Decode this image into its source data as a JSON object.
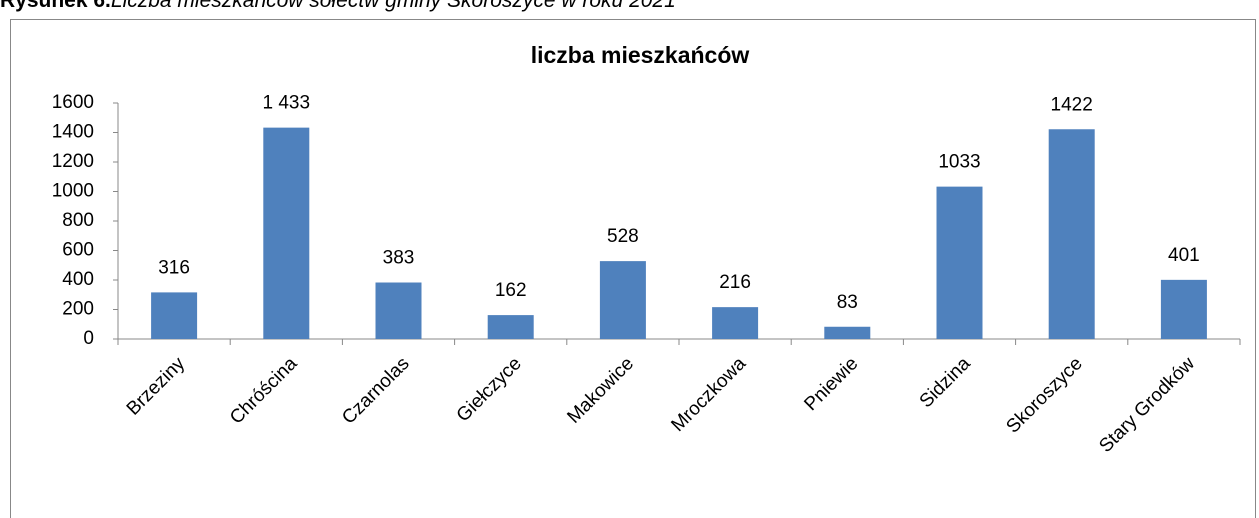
{
  "caption": {
    "label": "Rysunek 6.",
    "text": "Liczba mieszkańców sołectw gminy Skoroszyce w roku 2021"
  },
  "chart_data": {
    "type": "bar",
    "title": "liczba mieszkańców",
    "categories": [
      "Brzeziny",
      "Chróścina",
      "Czarnolas",
      "Giełczyce",
      "Makowice",
      "Mroczkowa",
      "Pniewie",
      "Sidzina",
      "Skoroszyce",
      "Stary Grodków"
    ],
    "values": [
      316,
      1433,
      383,
      162,
      528,
      216,
      83,
      1033,
      1422,
      401
    ],
    "value_labels": [
      "316",
      "1 433",
      "383",
      "162",
      "528",
      "216",
      "83",
      "1033",
      "1422",
      "401"
    ],
    "color": "#4f81bd",
    "ylim": [
      0,
      1600
    ],
    "yticks": [
      0,
      200,
      400,
      600,
      800,
      1000,
      1200,
      1400,
      1600
    ],
    "grid": false
  }
}
